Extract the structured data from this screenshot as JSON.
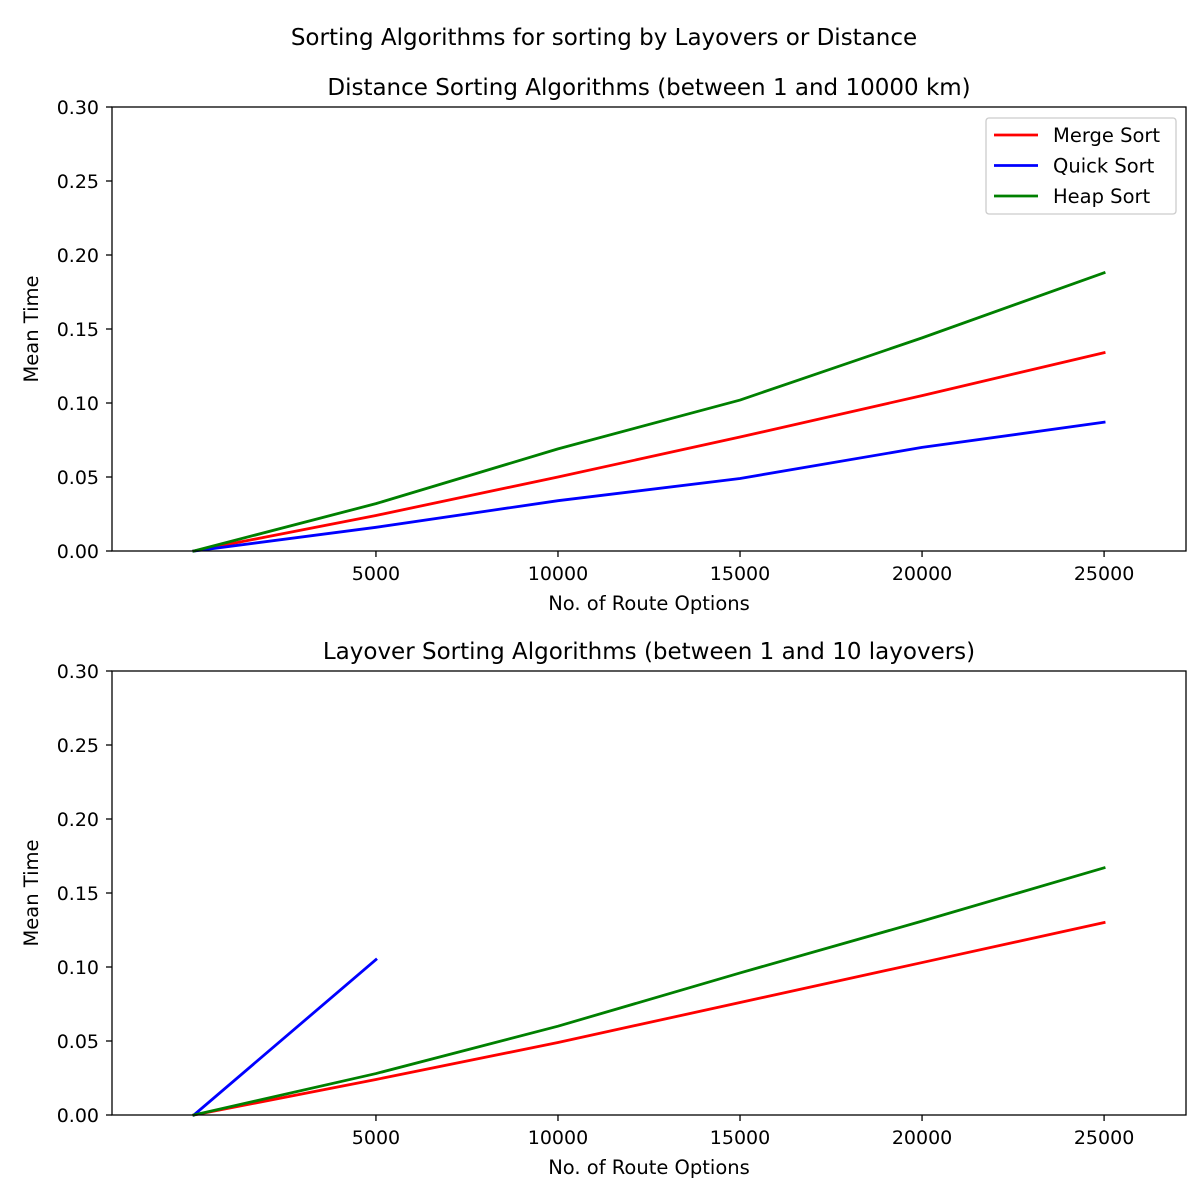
{
  "suptitle": "Sorting Algorithms for sorting by Layovers or Distance",
  "colors": {
    "merge": "#ff0000",
    "quick": "#0000ff",
    "heap": "#008000"
  },
  "chart_data": [
    {
      "type": "line",
      "title": "Distance Sorting Algorithms (between 1 and 10000 km)",
      "xlabel": "No. of Route Options",
      "ylabel": "Mean Time",
      "xlim": [
        -2250,
        27250
      ],
      "ylim": [
        0,
        0.3
      ],
      "xticks": [
        5000,
        10000,
        15000,
        20000,
        25000
      ],
      "xtick_labels": [
        "5000",
        "10000",
        "15000",
        "20000",
        "25000"
      ],
      "yticks": [
        0.0,
        0.05,
        0.1,
        0.15,
        0.2,
        0.25,
        0.3
      ],
      "ytick_labels": [
        "0.00",
        "0.05",
        "0.10",
        "0.15",
        "0.20",
        "0.25",
        "0.30"
      ],
      "legend": "top-right",
      "grid": false,
      "series": [
        {
          "name": "Merge Sort",
          "color": "#ff0000",
          "x": [
            0,
            5000,
            10000,
            15000,
            20000,
            25000
          ],
          "y": [
            0.0,
            0.024,
            0.05,
            0.077,
            0.105,
            0.134
          ]
        },
        {
          "name": "Quick Sort",
          "color": "#0000ff",
          "x": [
            0,
            5000,
            10000,
            15000,
            20000,
            25000
          ],
          "y": [
            0.0,
            0.016,
            0.034,
            0.049,
            0.07,
            0.087
          ]
        },
        {
          "name": "Heap Sort",
          "color": "#008000",
          "x": [
            0,
            5000,
            10000,
            15000,
            20000,
            25000
          ],
          "y": [
            0.0,
            0.032,
            0.069,
            0.102,
            0.144,
            0.188
          ]
        }
      ]
    },
    {
      "type": "line",
      "title": "Layover Sorting Algorithms (between 1 and 10 layovers)",
      "xlabel": "No. of Route Options",
      "ylabel": "Mean Time",
      "xlim": [
        -2250,
        27250
      ],
      "ylim": [
        0,
        0.3
      ],
      "xticks": [
        5000,
        10000,
        15000,
        20000,
        25000
      ],
      "xtick_labels": [
        "5000",
        "10000",
        "15000",
        "20000",
        "25000"
      ],
      "yticks": [
        0.0,
        0.05,
        0.1,
        0.15,
        0.2,
        0.25,
        0.3
      ],
      "ytick_labels": [
        "0.00",
        "0.05",
        "0.10",
        "0.15",
        "0.20",
        "0.25",
        "0.30"
      ],
      "grid": false,
      "series": [
        {
          "name": "Merge Sort",
          "color": "#ff0000",
          "x": [
            0,
            5000,
            10000,
            15000,
            20000,
            25000
          ],
          "y": [
            0.0,
            0.024,
            0.049,
            0.076,
            0.103,
            0.13
          ]
        },
        {
          "name": "Quick Sort",
          "color": "#0000ff",
          "x": [
            0,
            5000
          ],
          "y": [
            0.0,
            0.105
          ]
        },
        {
          "name": "Heap Sort",
          "color": "#008000",
          "x": [
            0,
            5000,
            10000,
            15000,
            20000,
            25000
          ],
          "y": [
            0.0,
            0.028,
            0.06,
            0.096,
            0.131,
            0.167
          ]
        }
      ]
    }
  ]
}
